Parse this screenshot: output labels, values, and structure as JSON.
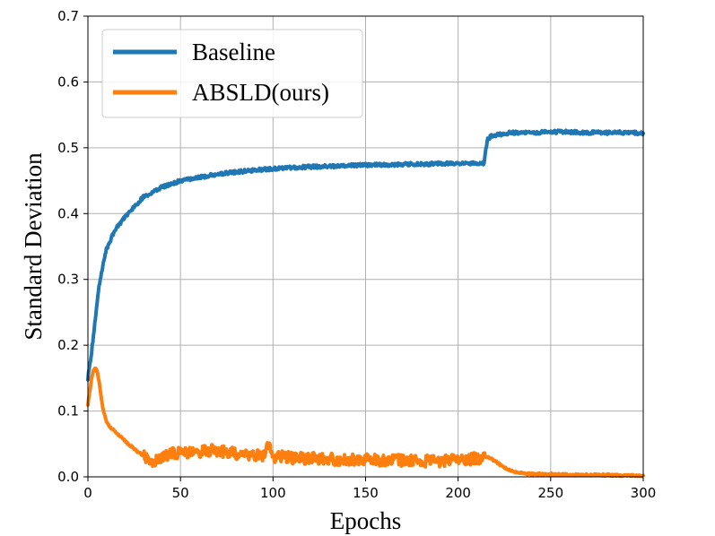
{
  "chart_data": {
    "type": "line",
    "xlabel": "Epochs",
    "ylabel": "Standard Deviation",
    "xlim": [
      0,
      300
    ],
    "ylim": [
      0.0,
      0.7
    ],
    "xticks": [
      0,
      50,
      100,
      150,
      200,
      250,
      300
    ],
    "yticks": [
      0.0,
      0.1,
      0.2,
      0.3,
      0.4,
      0.5,
      0.6,
      0.7
    ],
    "xtick_labels": [
      "0",
      "50",
      "100",
      "150",
      "200",
      "250",
      "300"
    ],
    "ytick_labels": [
      "0.0",
      "0.1",
      "0.2",
      "0.3",
      "0.4",
      "0.5",
      "0.6",
      "0.7"
    ],
    "grid": true,
    "legend_position": "top-left",
    "series": [
      {
        "name": "Baseline",
        "color": "#1f77b4",
        "x": [
          0,
          2,
          4,
          6,
          8,
          10,
          13,
          16,
          20,
          25,
          30,
          35,
          40,
          45,
          50,
          55,
          60,
          70,
          80,
          90,
          100,
          110,
          120,
          130,
          140,
          150,
          160,
          170,
          180,
          190,
          200,
          210,
          214,
          215,
          216,
          218,
          222,
          226,
          230,
          240,
          250,
          260,
          270,
          280,
          290,
          300
        ],
        "y": [
          0.15,
          0.19,
          0.24,
          0.29,
          0.32,
          0.345,
          0.365,
          0.38,
          0.395,
          0.41,
          0.425,
          0.432,
          0.44,
          0.445,
          0.45,
          0.452,
          0.455,
          0.46,
          0.463,
          0.466,
          0.468,
          0.47,
          0.471,
          0.472,
          0.473,
          0.474,
          0.474,
          0.475,
          0.475,
          0.476,
          0.476,
          0.476,
          0.476,
          0.5,
          0.512,
          0.518,
          0.52,
          0.522,
          0.523,
          0.523,
          0.524,
          0.524,
          0.523,
          0.523,
          0.523,
          0.522
        ]
      },
      {
        "name": "ABSLD(ours)",
        "color": "#ff7f0e",
        "x": [
          0,
          1,
          2,
          3,
          4,
          5,
          6,
          7,
          8,
          10,
          12,
          15,
          18,
          21,
          24,
          27,
          30,
          33,
          36,
          40,
          45,
          50,
          55,
          60,
          65,
          70,
          75,
          80,
          85,
          90,
          95,
          98,
          100,
          105,
          110,
          120,
          130,
          140,
          150,
          160,
          170,
          180,
          190,
          200,
          205,
          210,
          214,
          216,
          218,
          221,
          224,
          228,
          232,
          236,
          240,
          250,
          260,
          270,
          280,
          290,
          300
        ],
        "y": [
          0.11,
          0.13,
          0.15,
          0.162,
          0.165,
          0.16,
          0.145,
          0.125,
          0.105,
          0.085,
          0.075,
          0.068,
          0.06,
          0.052,
          0.045,
          0.038,
          0.032,
          0.026,
          0.022,
          0.03,
          0.035,
          0.036,
          0.037,
          0.038,
          0.04,
          0.04,
          0.038,
          0.035,
          0.033,
          0.032,
          0.033,
          0.052,
          0.03,
          0.032,
          0.029,
          0.028,
          0.027,
          0.026,
          0.026,
          0.025,
          0.025,
          0.024,
          0.024,
          0.025,
          0.026,
          0.028,
          0.03,
          0.03,
          0.027,
          0.022,
          0.015,
          0.01,
          0.007,
          0.005,
          0.004,
          0.004,
          0.003,
          0.003,
          0.003,
          0.002,
          0.002
        ]
      }
    ]
  }
}
